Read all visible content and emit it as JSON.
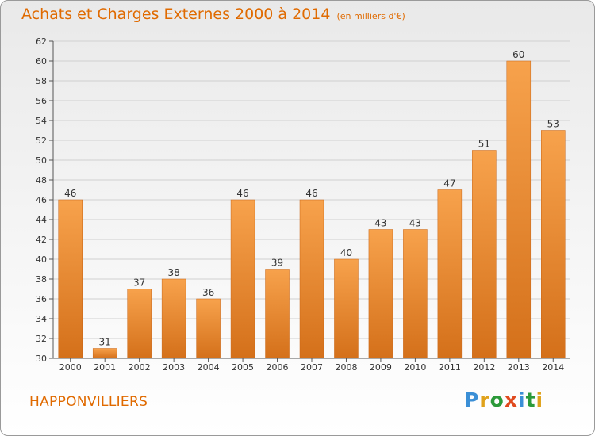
{
  "header": {
    "title": "Achats et Charges Externes 2000 à 2014",
    "subtitle": "(en milliers d'€)"
  },
  "footer": {
    "city": "HAPPONVILLIERS",
    "logo": {
      "letters": [
        "P",
        "r",
        "o",
        "x",
        "i",
        "t",
        "i"
      ],
      "colors": [
        "#3b8fd6",
        "#e0a21b",
        "#2c9a3a",
        "#e04a1f",
        "#3b8fd6",
        "#2c9a3a",
        "#e0a21b"
      ]
    }
  },
  "colors": {
    "bar_light": "#f7a24c",
    "bar_dark": "#d4701a",
    "title": "#e06a00"
  },
  "chart_data": {
    "type": "bar",
    "title": "Achats et Charges Externes 2000 à 2014",
    "subtitle": "(en milliers d'€)",
    "categories": [
      "2000",
      "2001",
      "2002",
      "2003",
      "2004",
      "2005",
      "2006",
      "2007",
      "2008",
      "2009",
      "2010",
      "2011",
      "2012",
      "2013",
      "2014"
    ],
    "values": [
      46,
      31,
      37,
      38,
      36,
      46,
      39,
      46,
      40,
      43,
      43,
      47,
      51,
      60,
      53
    ],
    "ylim": [
      30,
      62
    ],
    "yticks": [
      30,
      32,
      34,
      36,
      38,
      40,
      42,
      44,
      46,
      48,
      50,
      52,
      54,
      56,
      58,
      60,
      62
    ],
    "grid": true
  }
}
